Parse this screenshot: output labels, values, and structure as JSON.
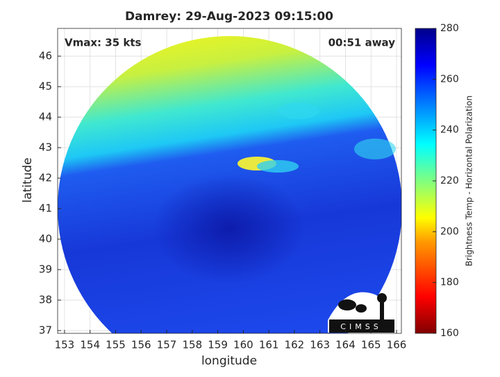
{
  "chart_data": {
    "type": "map",
    "title": "Damrey: 29-Aug-2023 09:15:00",
    "annotations": [
      "Vmax: 35 kts",
      "00:51 away"
    ],
    "x_label": "longitude",
    "y_label": "latitude",
    "xlim": [
      152.73,
      166.19
    ],
    "ylim": [
      36.91,
      46.91
    ],
    "xticks": [
      153,
      154,
      155,
      156,
      157,
      158,
      159,
      160,
      161,
      162,
      163,
      164,
      165,
      166
    ],
    "yticks": [
      37,
      38,
      39,
      40,
      41,
      42,
      43,
      44,
      45,
      46
    ],
    "grid": true,
    "colorbar": {
      "label": "Brightness Temp - Horizontal Polarization",
      "lim": [
        160,
        280
      ],
      "ticks": [
        160,
        180,
        200,
        220,
        240,
        260,
        280
      ]
    },
    "logo": "CIMSS"
  }
}
